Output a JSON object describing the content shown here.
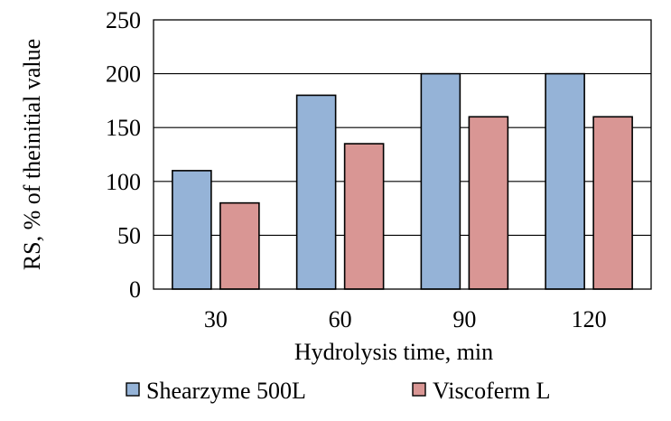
{
  "chart_data": {
    "type": "bar",
    "title": "",
    "xlabel": "Hydrolysis time, min",
    "ylabel": "RS, % of theinitial value",
    "categories": [
      "30",
      "60",
      "90",
      "120"
    ],
    "series": [
      {
        "name": "Shearzyme 500L",
        "values": [
          110,
          180,
          200,
          200
        ],
        "color": "#95b3d7"
      },
      {
        "name": "Viscoferm L",
        "values": [
          80,
          135,
          160,
          160
        ],
        "color": "#d99694"
      }
    ],
    "ylim": [
      0,
      250
    ],
    "yticks": [
      0,
      50,
      100,
      150,
      200,
      250
    ],
    "grid": true,
    "legend": "bottom"
  }
}
